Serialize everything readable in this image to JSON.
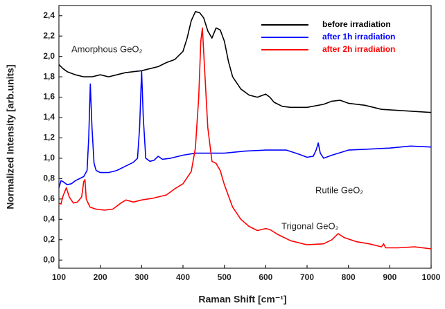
{
  "chart_data": {
    "type": "line",
    "x_label": "Raman Shift [cm⁻¹]",
    "y_label": "Normalized Intensity [arb.units]",
    "xlim": [
      100,
      1000
    ],
    "ylim": [
      -0.08,
      2.5
    ],
    "xticks": [
      100,
      200,
      300,
      400,
      500,
      600,
      700,
      800,
      900,
      1000
    ],
    "yticks": [
      {
        "value": 0,
        "label": "0,0"
      },
      {
        "value": 0.2,
        "label": "0,2"
      },
      {
        "value": 0.4,
        "label": "0,4"
      },
      {
        "value": 0.6,
        "label": "0,6"
      },
      {
        "value": 0.8,
        "label": "0,8"
      },
      {
        "value": 1,
        "label": "1,0"
      },
      {
        "value": 1.2,
        "label": "1,2"
      },
      {
        "value": 1.4,
        "label": "1,4"
      },
      {
        "value": 1.6,
        "label": "1,6"
      },
      {
        "value": 1.8,
        "label": "1,8"
      },
      {
        "value": 2,
        "label": "2,0"
      },
      {
        "value": 2.2,
        "label": "2,2"
      },
      {
        "value": 2.4,
        "label": "2,4"
      }
    ],
    "legend": "upper right",
    "annotations": [
      "Amorphous GeO₂",
      "Rutile GeO₂",
      "Trigonal GeO₂"
    ],
    "series": [
      {
        "name": "before irradiation",
        "color": "#000000",
        "x": [
          100,
          110,
          120,
          140,
          160,
          180,
          200,
          220,
          240,
          260,
          280,
          300,
          320,
          340,
          360,
          380,
          400,
          410,
          420,
          430,
          440,
          450,
          460,
          470,
          480,
          490,
          500,
          510,
          520,
          540,
          560,
          580,
          600,
          610,
          620,
          640,
          660,
          700,
          740,
          760,
          780,
          800,
          840,
          880,
          920,
          960,
          1000
        ],
        "values": [
          1.92,
          1.88,
          1.85,
          1.82,
          1.8,
          1.8,
          1.82,
          1.8,
          1.82,
          1.84,
          1.85,
          1.86,
          1.88,
          1.9,
          1.94,
          1.97,
          2.05,
          2.18,
          2.35,
          2.44,
          2.43,
          2.38,
          2.25,
          2.18,
          2.28,
          2.26,
          2.15,
          1.95,
          1.8,
          1.68,
          1.62,
          1.6,
          1.63,
          1.6,
          1.55,
          1.51,
          1.5,
          1.5,
          1.53,
          1.56,
          1.57,
          1.54,
          1.52,
          1.48,
          1.47,
          1.46,
          1.45
        ]
      },
      {
        "name": "after 1h irradiation",
        "color": "#0000ff",
        "x": [
          100,
          105,
          110,
          120,
          130,
          140,
          150,
          160,
          168,
          172,
          176,
          180,
          185,
          190,
          200,
          220,
          240,
          260,
          280,
          290,
          295,
          300,
          304,
          310,
          320,
          330,
          340,
          350,
          370,
          400,
          430,
          460,
          500,
          550,
          600,
          650,
          680,
          700,
          715,
          722,
          727,
          732,
          740,
          760,
          800,
          850,
          900,
          950,
          1000
        ],
        "values": [
          0.71,
          0.78,
          0.77,
          0.74,
          0.75,
          0.78,
          0.8,
          0.82,
          0.88,
          1.2,
          1.73,
          1.3,
          0.95,
          0.88,
          0.86,
          0.86,
          0.88,
          0.92,
          0.96,
          1.0,
          1.3,
          1.86,
          1.4,
          1.0,
          0.97,
          0.98,
          1.02,
          0.99,
          1.0,
          1.03,
          1.05,
          1.05,
          1.05,
          1.07,
          1.08,
          1.08,
          1.04,
          1.01,
          1.02,
          1.08,
          1.15,
          1.05,
          1.0,
          1.03,
          1.08,
          1.09,
          1.1,
          1.12,
          1.11
        ]
      },
      {
        "name": "after 2h irradiation",
        "color": "#ff0000",
        "x": [
          100,
          105,
          110,
          118,
          125,
          135,
          145,
          155,
          160,
          163,
          166,
          175,
          190,
          210,
          230,
          250,
          262,
          280,
          300,
          330,
          360,
          380,
          400,
          420,
          430,
          438,
          443,
          447,
          452,
          460,
          470,
          480,
          490,
          500,
          520,
          540,
          560,
          580,
          600,
          610,
          630,
          660,
          700,
          740,
          760,
          775,
          790,
          820,
          850,
          880,
          885,
          890,
          920,
          960,
          1000
        ],
        "values": [
          0.56,
          0.55,
          0.63,
          0.71,
          0.62,
          0.56,
          0.57,
          0.62,
          0.77,
          0.79,
          0.6,
          0.52,
          0.5,
          0.49,
          0.5,
          0.56,
          0.59,
          0.57,
          0.59,
          0.61,
          0.64,
          0.7,
          0.75,
          0.87,
          1.1,
          1.6,
          2.15,
          2.28,
          1.9,
          1.3,
          0.97,
          0.95,
          0.88,
          0.74,
          0.52,
          0.4,
          0.33,
          0.29,
          0.31,
          0.3,
          0.25,
          0.19,
          0.15,
          0.16,
          0.2,
          0.26,
          0.22,
          0.18,
          0.16,
          0.13,
          0.16,
          0.12,
          0.12,
          0.13,
          0.11
        ]
      }
    ]
  }
}
